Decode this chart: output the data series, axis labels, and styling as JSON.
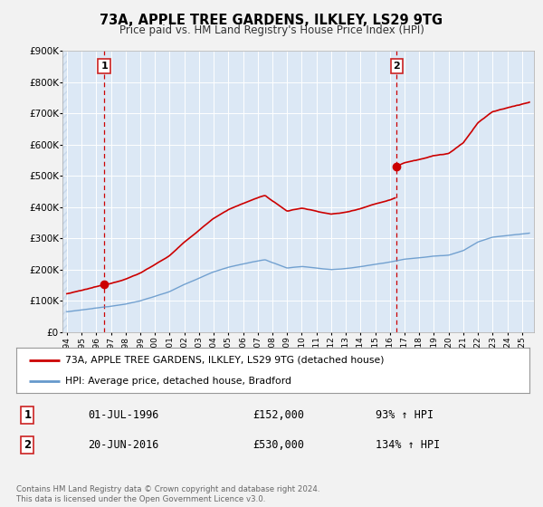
{
  "title_line1": "73A, APPLE TREE GARDENS, ILKLEY, LS29 9TG",
  "title_line2": "Price paid vs. HM Land Registry's House Price Index (HPI)",
  "bg_color": "#f2f2f2",
  "plot_bg_color": "#dce8f5",
  "grid_color": "#ffffff",
  "hatch_color": "#c8d8ea",
  "red_line_color": "#cc0000",
  "blue_line_color": "#6699cc",
  "sale1_year": 1996.54,
  "sale1_price": 152000,
  "sale2_year": 2016.47,
  "sale2_price": 530000,
  "xmin": 1993.7,
  "xmax": 2025.8,
  "ymin": 0,
  "ymax": 900000,
  "yticks": [
    0,
    100000,
    200000,
    300000,
    400000,
    500000,
    600000,
    700000,
    800000,
    900000
  ],
  "ytick_labels": [
    "£0",
    "£100K",
    "£200K",
    "£300K",
    "£400K",
    "£500K",
    "£600K",
    "£700K",
    "£800K",
    "£900K"
  ],
  "xticks": [
    1994,
    1995,
    1996,
    1997,
    1998,
    1999,
    2000,
    2001,
    2002,
    2003,
    2004,
    2005,
    2006,
    2007,
    2008,
    2009,
    2010,
    2011,
    2012,
    2013,
    2014,
    2015,
    2016,
    2017,
    2018,
    2019,
    2020,
    2021,
    2022,
    2023,
    2024,
    2025
  ],
  "legend_red_label": "73A, APPLE TREE GARDENS, ILKLEY, LS29 9TG (detached house)",
  "legend_blue_label": "HPI: Average price, detached house, Bradford",
  "annotation1_date": "01-JUL-1996",
  "annotation1_price": "£152,000",
  "annotation1_hpi": "93% ↑ HPI",
  "annotation2_date": "20-JUN-2016",
  "annotation2_price": "£530,000",
  "annotation2_hpi": "134% ↑ HPI",
  "footer": "Contains HM Land Registry data © Crown copyright and database right 2024.\nThis data is licensed under the Open Government Licence v3.0."
}
